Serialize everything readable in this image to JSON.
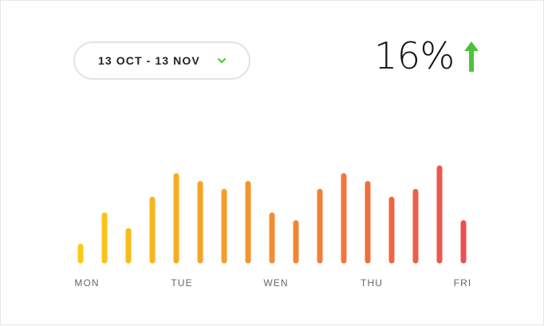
{
  "date_range": {
    "label": "13 OCT - 13 NOV",
    "icon": "chevron-down-icon",
    "icon_color": "#4cc23c"
  },
  "metric": {
    "value": "16%",
    "trend_icon": "arrow-up-icon",
    "trend_color": "#4cc23c"
  },
  "chart_data": {
    "type": "bar",
    "title": "",
    "xlabel": "",
    "ylabel": "",
    "ylim": [
      0,
      120
    ],
    "x_ticks": [
      "MON",
      "TUE",
      "WEN",
      "THU",
      "FRI"
    ],
    "values": [
      18,
      58,
      38,
      78,
      108,
      98,
      88,
      98,
      58,
      48,
      88,
      108,
      98,
      78,
      88,
      118,
      48
    ],
    "colors": {
      "start": "#f9cb13",
      "end": "#ec4f4f"
    },
    "grid": false,
    "legend": "none"
  }
}
